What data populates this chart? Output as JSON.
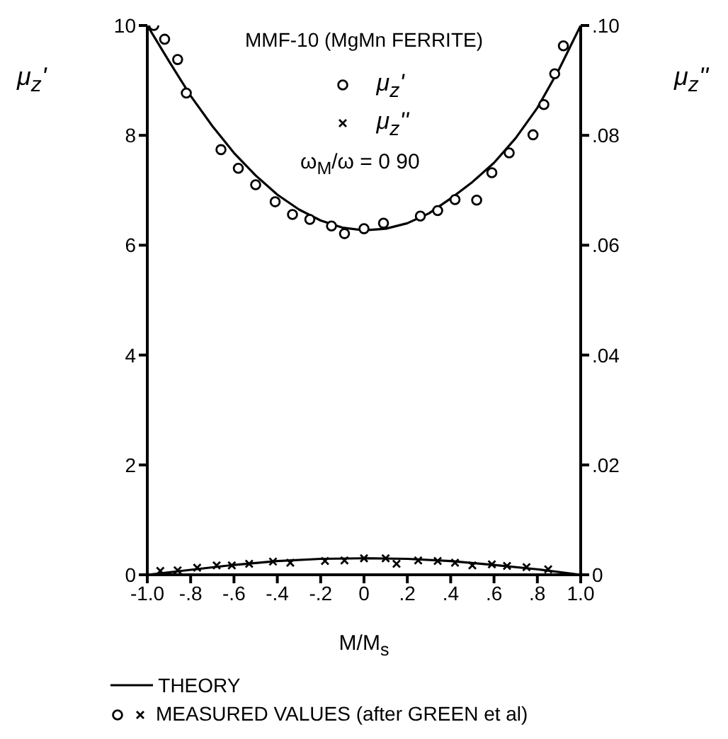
{
  "chart_data": {
    "type": "scatter",
    "title": "MMF-10 (MgMn FERRITE)",
    "xlabel": "M/M$_{s}$",
    "ylabel": "μ$_{z}$'",
    "y2label": "μ$_{z}$''",
    "annotations": [
      "ω$_{M}$/ω = 0 90",
      "MEASURED VALUES (after GREEN et al)",
      "THEORY"
    ],
    "xlim": [
      -1.0,
      1.0
    ],
    "xticks": [
      {
        "value": -1.0,
        "label": "-1.0"
      },
      {
        "value": -0.8,
        "label": "-.8"
      },
      {
        "value": -0.6,
        "label": "-.6"
      },
      {
        "value": -0.4,
        "label": "-.4"
      },
      {
        "value": -0.2,
        "label": "-.2"
      },
      0,
      {
        "value": 0.2,
        "label": ".2"
      },
      {
        "value": 0.4,
        "label": ".4"
      },
      {
        "value": 0.6,
        "label": ".6"
      },
      {
        "value": 0.8,
        "label": ".8"
      },
      {
        "value": 1.0,
        "label": "1.0"
      }
    ],
    "ylim": [
      0,
      10
    ],
    "yticks": [
      0,
      2,
      4,
      6,
      8,
      10
    ],
    "y2lim": [
      0,
      0.1
    ],
    "y2ticks": [
      0,
      {
        "value": 0.02,
        "label": ".02"
      },
      {
        "value": 0.04,
        "label": ".04"
      },
      {
        "value": 0.06,
        "label": ".06"
      },
      {
        "value": 0.08,
        "label": ".08"
      },
      {
        "value": 0.1,
        "label": ".10"
      }
    ],
    "grid": false,
    "legend": "top",
    "series": [
      {
        "name": "μ$_{z}$'",
        "color": "#000000",
        "marker": "circle",
        "x": [
          -0.97,
          -0.92,
          -0.86,
          -0.82,
          -0.66,
          -0.58,
          -0.5,
          -0.41,
          -0.33,
          -0.25,
          -0.15,
          -0.09,
          0.0,
          0.09,
          0.26,
          0.34,
          0.42,
          0.52,
          0.59,
          0.67,
          0.78,
          0.83,
          0.88,
          0.92
        ],
        "values": [
          10.0,
          9.75,
          9.38,
          8.77,
          7.74,
          7.4,
          7.1,
          6.79,
          6.56,
          6.47,
          6.35,
          6.21,
          6.3,
          6.4,
          6.53,
          6.63,
          6.83,
          6.82,
          7.32,
          7.68,
          8.01,
          8.56,
          9.12,
          9.63
        ]
      },
      {
        "name": "μ$_{z}$''",
        "color": "#000000",
        "marker": "cross",
        "axis": "y2",
        "x": [
          -0.94,
          -0.86,
          -0.77,
          -0.68,
          -0.61,
          -0.53,
          -0.42,
          -0.34,
          -0.18,
          -0.09,
          0.0,
          0.1,
          0.15,
          0.25,
          0.34,
          0.42,
          0.5,
          0.59,
          0.66,
          0.75,
          0.85
        ],
        "values": [
          0.0007,
          0.0008,
          0.0013,
          0.0017,
          0.0017,
          0.002,
          0.0024,
          0.0022,
          0.0025,
          0.0026,
          0.003,
          0.003,
          0.002,
          0.0026,
          0.0025,
          0.0022,
          0.0017,
          0.0019,
          0.0016,
          0.0014,
          0.001
        ]
      },
      {
        "type": "line",
        "color": "#000000",
        "marker": "none",
        "line_style": "solid",
        "x": [
          -1.0,
          -0.9,
          -0.8,
          -0.7,
          -0.6,
          -0.5,
          -0.4,
          -0.3,
          -0.2,
          -0.1,
          0.0,
          0.1,
          0.2,
          0.3,
          0.4,
          0.5,
          0.6,
          0.7,
          0.8,
          0.9,
          1.0
        ],
        "values": [
          10.0,
          9.35,
          8.72,
          8.17,
          7.68,
          7.27,
          6.92,
          6.65,
          6.45,
          6.32,
          6.27,
          6.3,
          6.4,
          6.58,
          6.85,
          7.15,
          7.5,
          7.95,
          8.5,
          9.2,
          10.0
        ]
      },
      {
        "type": "line",
        "color": "#000000",
        "marker": "none",
        "line_style": "solid",
        "axis": "y2",
        "x": [
          -1.0,
          -0.8,
          -0.6,
          -0.4,
          -0.2,
          0.0,
          0.2,
          0.4,
          0.6,
          0.8,
          1.0
        ],
        "values": [
          0,
          0.0009,
          0.0018,
          0.0025,
          0.0029,
          0.003,
          0.0029,
          0.0025,
          0.0018,
          0.001,
          0
        ]
      }
    ]
  }
}
